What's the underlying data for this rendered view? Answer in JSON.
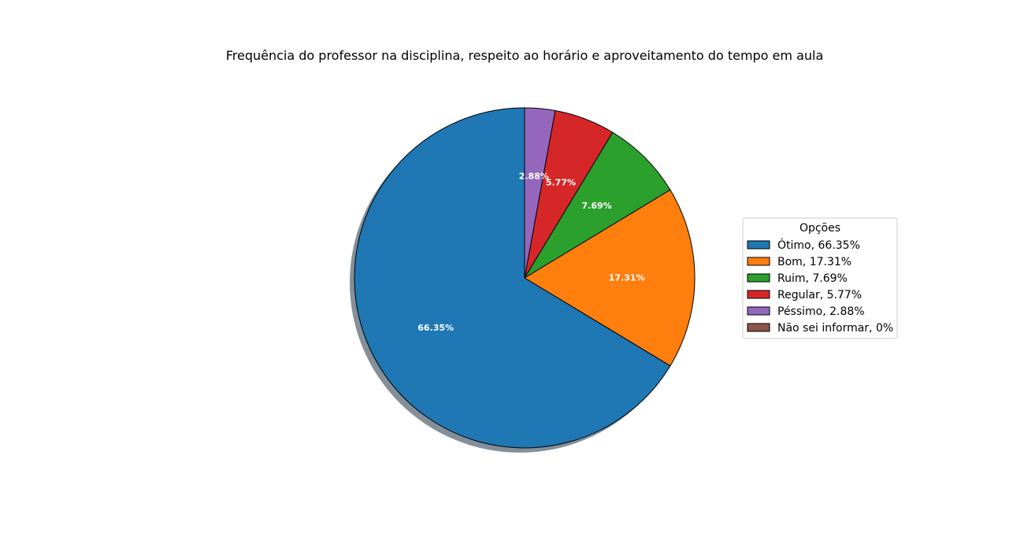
{
  "chart_data": {
    "type": "pie",
    "title": "Frequência do professor na disciplina, respeito ao horário e aproveitamento do tempo em aula",
    "legend_title": "Opções",
    "legend_position": "right",
    "start_angle": "top",
    "direction": "counterclockwise",
    "shadow": true,
    "slices": [
      {
        "label": "Ótimo, 66.35%",
        "value": 66.35,
        "display": "66.35%",
        "color": "#1f77b4"
      },
      {
        "label": "Bom, 17.31%",
        "value": 17.31,
        "display": "17.31%",
        "color": "#ff7f0e"
      },
      {
        "label": "Ruim, 7.69%",
        "value": 7.69,
        "display": "7.69%",
        "color": "#2ca02c"
      },
      {
        "label": "Regular, 5.77%",
        "value": 5.77,
        "display": "5.77%",
        "color": "#d62728"
      },
      {
        "label": "Péssimo, 2.88%",
        "value": 2.88,
        "display": "2.88%",
        "color": "#9467bd"
      },
      {
        "label": "Não sei informar, 0%",
        "value": 0,
        "display": "",
        "color": "#8c564b"
      }
    ]
  }
}
